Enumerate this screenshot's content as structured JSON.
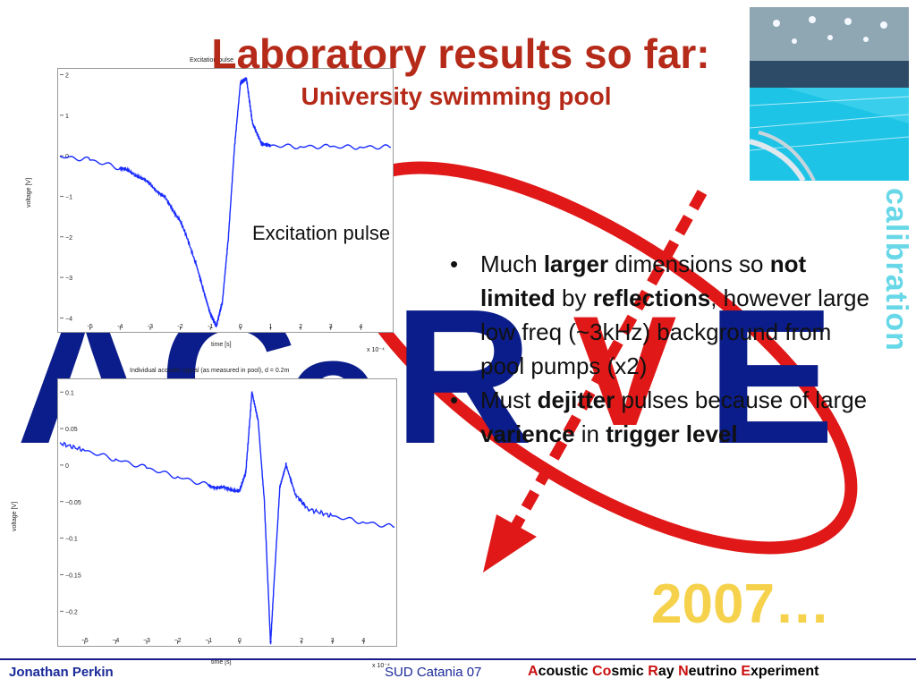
{
  "slide": {
    "title": "Laboratory results so far:",
    "subtitle": "University swimming pool",
    "side_label": "calibration",
    "annotation": "Excitation pulse",
    "bullets": [
      {
        "runs": [
          {
            "t": "Much ",
            "b": false
          },
          {
            "t": "larger",
            "b": true
          },
          {
            "t": " dimensions so ",
            "b": false
          },
          {
            "t": "not limited",
            "b": true
          },
          {
            "t": " by ",
            "b": false
          },
          {
            "t": "reflections",
            "b": true
          },
          {
            "t": ", however large low freq (~3kHz) background from pool pumps (x2)",
            "b": false
          }
        ]
      },
      {
        "runs": [
          {
            "t": "Must ",
            "b": false
          },
          {
            "t": "dejitter",
            "b": true
          },
          {
            "t": " pulses because of large ",
            "b": false
          },
          {
            "t": "varience",
            "b": true
          },
          {
            "t": " in ",
            "b": false
          },
          {
            "t": "trigger level",
            "b": true
          }
        ]
      }
    ],
    "bullet_glyph": "•",
    "year": "2007…",
    "logo_letters": [
      "A",
      "C",
      "o",
      "R",
      "V",
      "E"
    ]
  },
  "footer": {
    "author": "Jonathan Perkin",
    "conference": "SUD Catania 07",
    "experiment": [
      {
        "t": "A",
        "red": true
      },
      {
        "t": "coustic ",
        "red": false
      },
      {
        "t": "Co",
        "red": true
      },
      {
        "t": "smic ",
        "red": false
      },
      {
        "t": "R",
        "red": true
      },
      {
        "t": "ay ",
        "red": false
      },
      {
        "t": "N",
        "red": true
      },
      {
        "t": "eutrino ",
        "red": false
      },
      {
        "t": "E",
        "red": true
      },
      {
        "t": "xperiment",
        "red": false
      }
    ]
  },
  "colors": {
    "title": "#b52a18",
    "logo_blue": "#0b1d8a",
    "logo_red": "#e01818",
    "trace_blue": "#1a2cff",
    "calibration": "#68d8e8",
    "year": "#f6d24c",
    "footer_text": "#1a2a99"
  },
  "chart_data": [
    {
      "type": "line",
      "title": "Excitation pulse",
      "xlabel": "time [s]",
      "ylabel": "voltage [V]",
      "x_multiplier_label": "x 10⁻⁴",
      "xlim": [
        -6,
        5
      ],
      "ylim": [
        -4.3,
        2.1
      ],
      "xticks": [
        -5,
        -4,
        -3,
        -2,
        -1,
        0,
        1,
        2,
        3,
        4
      ],
      "xtick_labels": [
        "-5",
        "-4",
        "-3",
        "-2",
        "-1",
        "0",
        "1",
        "2",
        "3",
        "4"
      ],
      "yticks": [
        2,
        1,
        0,
        -1,
        -2,
        -3,
        -4
      ],
      "ytick_labels": [
        "2",
        "1",
        "0",
        "−1",
        "−2",
        "−3",
        "−4"
      ],
      "series": [
        {
          "x": [
            -6,
            -5,
            -4,
            -3.5,
            -3,
            -2.5,
            -2,
            -1.5,
            -1.2,
            -1,
            -0.8,
            -0.6,
            -0.4,
            -0.2,
            0,
            0.2,
            0.4,
            0.7,
            1,
            2,
            3,
            4,
            5
          ],
          "y": [
            -0.02,
            -0.1,
            -0.3,
            -0.45,
            -0.7,
            -1.05,
            -1.6,
            -2.6,
            -3.4,
            -3.9,
            -4.2,
            -3.6,
            -2.0,
            0.2,
            1.8,
            1.9,
            0.8,
            0.3,
            0.25,
            0.23,
            0.22,
            0.22,
            0.21
          ]
        }
      ]
    },
    {
      "type": "line",
      "title": "Individual acoustic signal (as measured in pool), d = 0.2m",
      "xlabel": "time [s]",
      "ylabel": "voltage [V]",
      "x_multiplier_label": "x 10⁻⁴",
      "xlim": [
        -5.8,
        5
      ],
      "ylim": [
        -0.245,
        0.115
      ],
      "xticks": [
        -5,
        -4,
        -3,
        -2,
        -1,
        0,
        1,
        2,
        3,
        4
      ],
      "xtick_labels": [
        "−5",
        "−4",
        "−3",
        "−2",
        "−1",
        "0",
        "1",
        "2",
        "3",
        "4"
      ],
      "yticks": [
        0.1,
        0.05,
        0,
        -0.05,
        -0.1,
        -0.15,
        -0.2
      ],
      "ytick_labels": [
        "0.1",
        "0.05",
        "0",
        "−0.05",
        "−0.1",
        "−0.15",
        "−0.2"
      ],
      "series": [
        {
          "x": [
            -5.8,
            -5,
            -4,
            -3,
            -2,
            -1,
            -0.5,
            0,
            0.2,
            0.4,
            0.6,
            0.8,
            1.0,
            1.1,
            1.3,
            1.5,
            1.8,
            2.2,
            3,
            4,
            5
          ],
          "y": [
            0.03,
            0.02,
            0.008,
            -0.004,
            -0.016,
            -0.028,
            -0.032,
            -0.035,
            -0.01,
            0.1,
            0.06,
            -0.05,
            -0.245,
            -0.17,
            -0.03,
            0.0,
            -0.04,
            -0.06,
            -0.07,
            -0.078,
            -0.085
          ]
        }
      ]
    }
  ]
}
